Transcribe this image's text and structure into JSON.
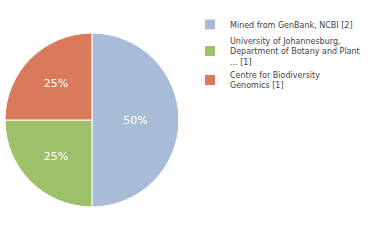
{
  "chart_data": {
    "type": "pie",
    "categories": [
      "Mined from GenBank, NCBI [2]",
      "University of Johannesburg,\nDepartment of Botany and Plant\n... [1]",
      "Centre for Biodiversity\nGenomics [1]"
    ],
    "values": [
      50,
      25,
      25
    ],
    "value_labels": [
      "50%",
      "25%",
      "25%"
    ],
    "colors": [
      "#a8bcd8",
      "#9dc068",
      "#d97a5a"
    ],
    "data_labels": true,
    "legend": "right"
  }
}
